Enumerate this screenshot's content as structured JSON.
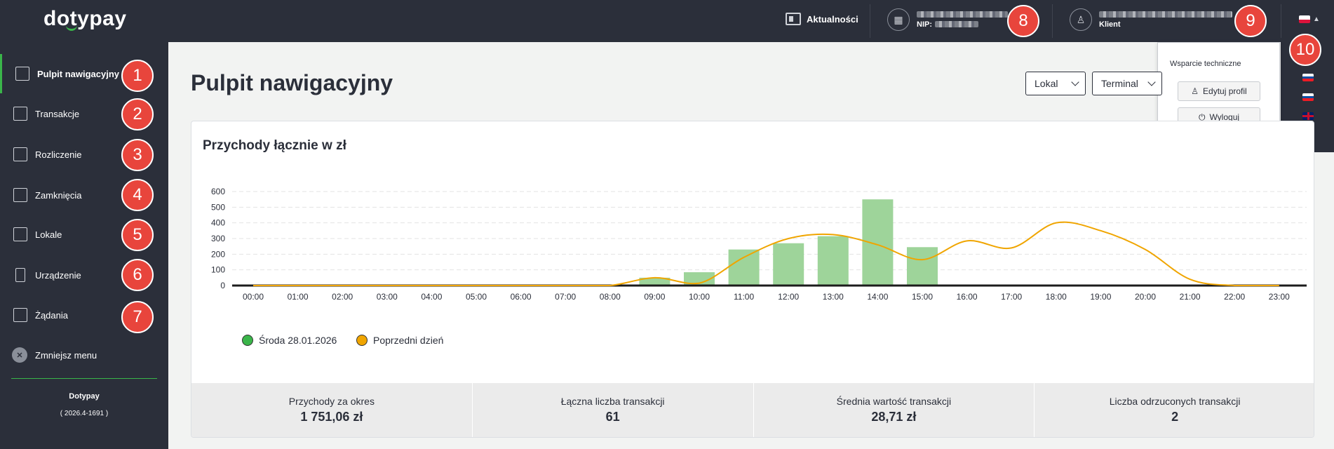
{
  "brand": {
    "logo": "dotypay"
  },
  "topbar": {
    "news_label": "Aktualności",
    "company": {
      "nip_label": "NIP:"
    },
    "user": {
      "role": "Klient"
    }
  },
  "badges": [
    "1",
    "2",
    "3",
    "4",
    "5",
    "6",
    "7",
    "8",
    "9",
    "10"
  ],
  "sidebar": {
    "items": [
      {
        "label": "Pulpit nawigacyjny",
        "icon": "dashboard-icon"
      },
      {
        "label": "Transakcje",
        "icon": "transactions-icon"
      },
      {
        "label": "Rozliczenie",
        "icon": "settlement-icon"
      },
      {
        "label": "Zamknięcia",
        "icon": "closures-icon"
      },
      {
        "label": "Lokale",
        "icon": "locations-icon"
      },
      {
        "label": "Urządzenie",
        "icon": "device-icon"
      },
      {
        "label": "Żądania",
        "icon": "requests-icon"
      }
    ],
    "collapse_label": "Zmniejsz menu",
    "footer_brand": "Dotypay",
    "version": "( 2026.4-1691 )"
  },
  "main": {
    "title": "Pulpit nawigacyjny",
    "filters": {
      "lokal": "Lokal",
      "terminal": "Terminal"
    }
  },
  "dropdown": {
    "title": "Wsparcie techniczne",
    "edit_profile": "Edytuj profil",
    "logout": "Wyloguj"
  },
  "colors": {
    "accent": "#3ab54a",
    "dark": "#2b2f3a",
    "badge": "#e8453c",
    "bar": "#9ed49a",
    "line": "#f0a500"
  },
  "card": {
    "title": "Przychody łącznie w zł"
  },
  "chart_data": {
    "type": "bar",
    "title": "Przychody łącznie w zł",
    "categories": [
      "00:00",
      "01:00",
      "02:00",
      "03:00",
      "04:00",
      "05:00",
      "06:00",
      "07:00",
      "08:00",
      "09:00",
      "10:00",
      "11:00",
      "12:00",
      "13:00",
      "14:00",
      "15:00",
      "16:00",
      "17:00",
      "18:00",
      "19:00",
      "20:00",
      "21:00",
      "22:00",
      "23:00"
    ],
    "yticks": [
      0,
      100,
      200,
      300,
      400,
      500,
      600
    ],
    "ylim": [
      0,
      650
    ],
    "grid": true,
    "legend_position": "bottom-left",
    "series": [
      {
        "name": "Środa 28.01.2026",
        "type": "bar",
        "color": "#9ed49a",
        "values": [
          0,
          0,
          0,
          0,
          0,
          0,
          0,
          0,
          0,
          50,
          85,
          230,
          270,
          315,
          550,
          245,
          0,
          0,
          0,
          0,
          0,
          0,
          0,
          0
        ]
      },
      {
        "name": "Poprzedni dzień",
        "type": "line",
        "color": "#f0a500",
        "values": [
          0,
          0,
          0,
          0,
          0,
          0,
          0,
          0,
          0,
          50,
          15,
          180,
          300,
          325,
          260,
          165,
          285,
          240,
          400,
          350,
          230,
          40,
          0,
          0
        ]
      }
    ]
  },
  "stats": [
    {
      "label": "Przychody za okres",
      "value": "1 751,06 zł"
    },
    {
      "label": "Łączna liczba transakcji",
      "value": "61"
    },
    {
      "label": "Średnia wartość transakcji",
      "value": "28,71 zł"
    },
    {
      "label": "Liczba odrzuconych transakcji",
      "value": "2"
    }
  ]
}
